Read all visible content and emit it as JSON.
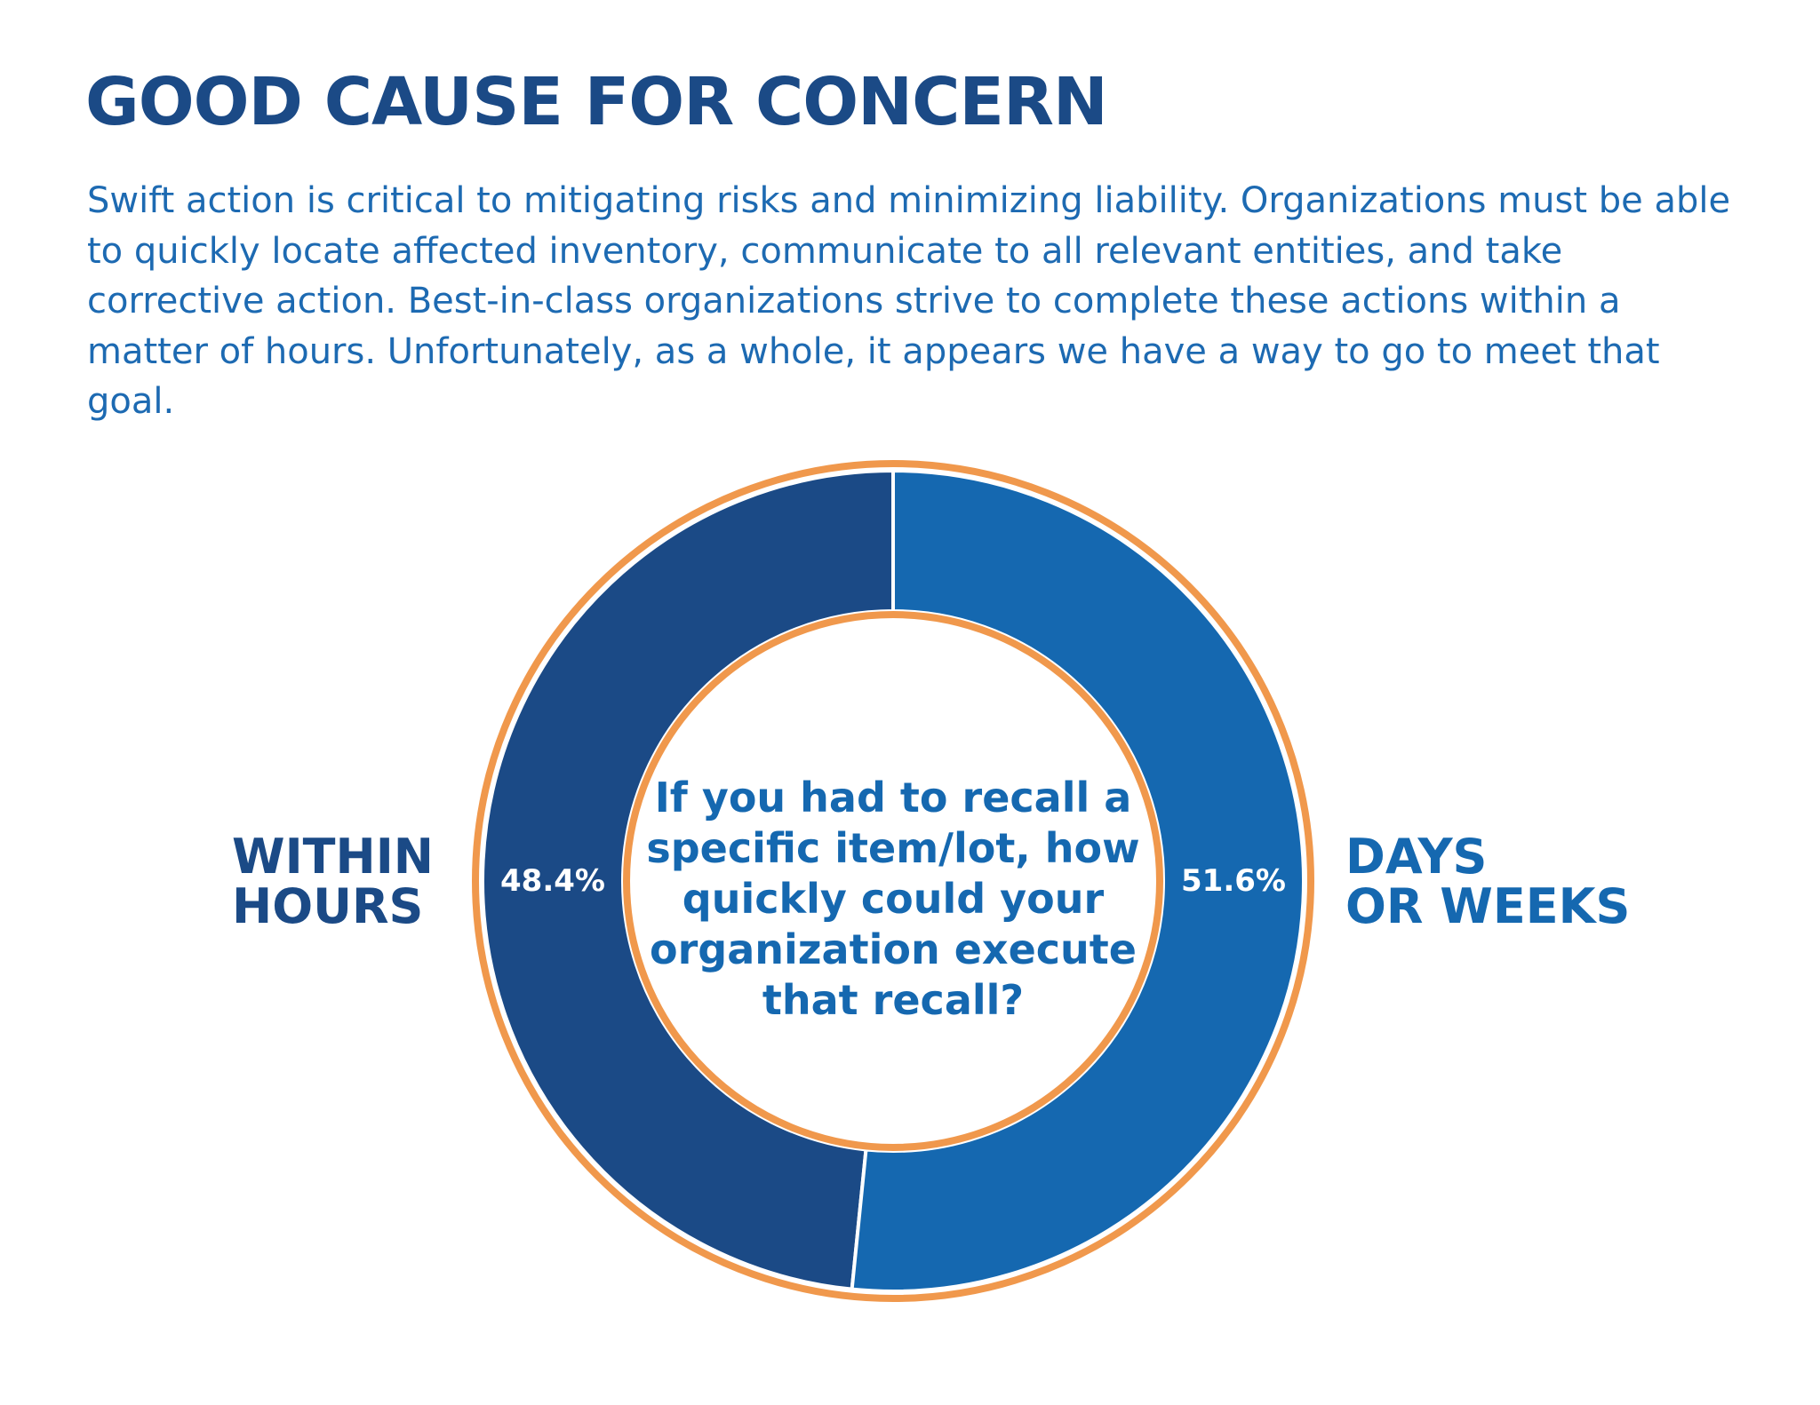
{
  "title": "GOOD CAUSE FOR CONCERN",
  "intro": "Swift action is critical to mitigating risks and minimizing liability. Organizations must be able to quickly locate affected inventory, communicate to all relevant entities, and take corrective action. Best-in-class organizations strive to complete these actions within a matter of hours. Unfortunately, as a whole, it appears we have a way to go to meet that goal.",
  "colors": {
    "heading": "#1b4a86",
    "body_text": "#1d6ab2",
    "slice_within_hours": "#1b4a86",
    "slice_days_or_weeks": "#1568b0",
    "ring_outline": "#f0984c",
    "divider": "#ffffff"
  },
  "chart_data": {
    "type": "pie",
    "style": "donut",
    "question": "If you had to recall a specific item/lot, how quickly could your organization execute that recall?",
    "slices": [
      {
        "label_line1": "WITHIN",
        "label_line2": "HOURS",
        "value": 48.4,
        "value_label": "48.4%",
        "color": "#1b4a86"
      },
      {
        "label_line1": "DAYS",
        "label_line2": "OR WEEKS",
        "value": 51.6,
        "value_label": "51.6%",
        "color": "#1568b0"
      }
    ]
  }
}
